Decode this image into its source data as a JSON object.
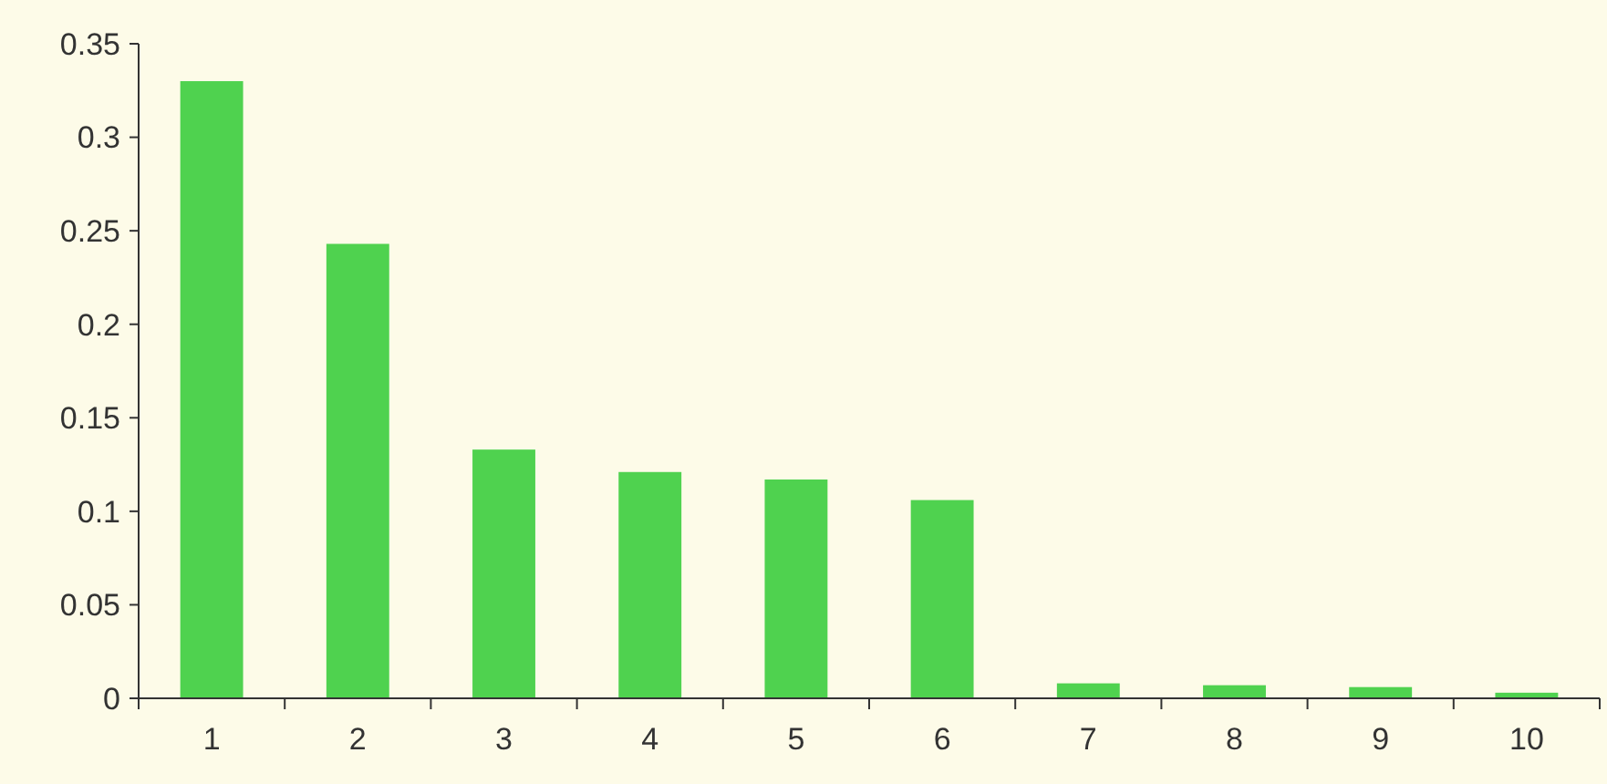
{
  "chart_data": {
    "type": "bar",
    "categories": [
      "1",
      "2",
      "3",
      "4",
      "5",
      "6",
      "7",
      "8",
      "9",
      "10"
    ],
    "values": [
      0.33,
      0.243,
      0.133,
      0.121,
      0.117,
      0.106,
      0.008,
      0.007,
      0.006,
      0.003
    ],
    "color": "#4fd24f",
    "ylim": [
      0,
      0.35
    ],
    "yticks": [
      0,
      0.05,
      0.1,
      0.15,
      0.2,
      0.25,
      0.3,
      0.35
    ],
    "grid": false
  }
}
